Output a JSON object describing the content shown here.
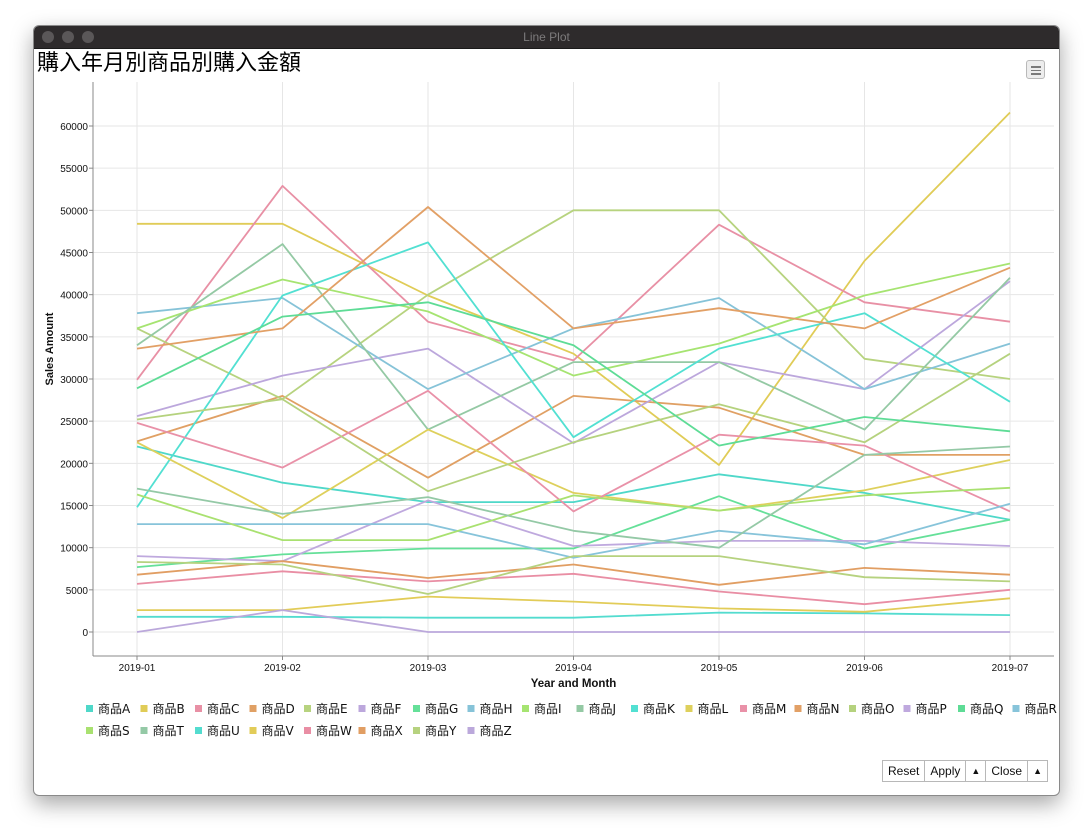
{
  "window": {
    "title": "Line Plot"
  },
  "toolbar": {
    "reset_label": "Reset",
    "apply_label": "Apply",
    "close_label": "Close",
    "arrow_glyph": "▲"
  },
  "menu_icon": "hamburger-menu-icon",
  "chart_data": {
    "type": "line",
    "title": "購入年月別商品別購入金額",
    "xlabel": "Year and Month",
    "ylabel": "Sales Amount",
    "categories": [
      "2019-01",
      "2019-02",
      "2019-03",
      "2019-04",
      "2019-05",
      "2019-06",
      "2019-07"
    ],
    "ylim": [
      -3000,
      64000
    ],
    "yticks": [
      0,
      5000,
      10000,
      15000,
      20000,
      25000,
      30000,
      35000,
      40000,
      45000,
      50000,
      55000,
      60000
    ],
    "grid": true,
    "legend_position": "bottom",
    "series": [
      {
        "name": "商品A",
        "color": "#4fd8c9",
        "values": [
          22000,
          17700,
          15400,
          15400,
          18700,
          16500,
          13300
        ]
      },
      {
        "name": "商品B",
        "color": "#e0cc57",
        "values": [
          48400,
          48400,
          39900,
          33000,
          19800,
          44000,
          61600
        ]
      },
      {
        "name": "商品C",
        "color": "#e890a5",
        "values": [
          29900,
          52900,
          36800,
          32200,
          48300,
          39100,
          36800
        ]
      },
      {
        "name": "商品D",
        "color": "#e0a064",
        "values": [
          22600,
          28000,
          18300,
          28000,
          26600,
          21000,
          21000
        ]
      },
      {
        "name": "商品E",
        "color": "#b7d37f",
        "values": [
          36000,
          27600,
          40000,
          50000,
          50000,
          32400,
          30000
        ]
      },
      {
        "name": "商品F",
        "color": "#bca7dc",
        "values": [
          25600,
          30400,
          33600,
          22400,
          32000,
          28800,
          41600
        ]
      },
      {
        "name": "商品G",
        "color": "#65e099",
        "values": [
          7700,
          9200,
          9900,
          9900,
          16100,
          9900,
          13300
        ]
      },
      {
        "name": "商品H",
        "color": "#86c3d8",
        "values": [
          37800,
          39600,
          28800,
          36000,
          39600,
          28800,
          34200
        ]
      },
      {
        "name": "商品I",
        "color": "#a6e471",
        "values": [
          36000,
          41800,
          38000,
          30400,
          34200,
          39900,
          43700
        ]
      },
      {
        "name": "商品J",
        "color": "#94c9a4",
        "values": [
          34000,
          46000,
          24000,
          32000,
          32000,
          24000,
          42000
        ]
      },
      {
        "name": "商品K",
        "color": "#52e0d2",
        "values": [
          14800,
          39900,
          46200,
          23100,
          33600,
          37800,
          27300
        ]
      },
      {
        "name": "商品L",
        "color": "#ded05c",
        "values": [
          22500,
          13500,
          24000,
          16500,
          14400,
          16800,
          20400
        ]
      },
      {
        "name": "商品M",
        "color": "#e991a8",
        "values": [
          24800,
          19500,
          28600,
          14300,
          23400,
          22100,
          14300
        ]
      },
      {
        "name": "商品N",
        "color": "#e2a066",
        "values": [
          33600,
          36000,
          50400,
          36000,
          38400,
          36000,
          43200
        ]
      },
      {
        "name": "商品O",
        "color": "#b5d27e",
        "values": [
          25200,
          27600,
          16700,
          22500,
          27000,
          22500,
          33000
        ]
      },
      {
        "name": "商品P",
        "color": "#bfa9de",
        "values": [
          9000,
          8400,
          15600,
          10200,
          10800,
          10800,
          10200
        ]
      },
      {
        "name": "商品Q",
        "color": "#5edc96",
        "values": [
          28900,
          37400,
          39100,
          34000,
          22100,
          25500,
          23800
        ]
      },
      {
        "name": "商品R",
        "color": "#87c4da",
        "values": [
          12800,
          12800,
          12800,
          8800,
          12000,
          10400,
          15200
        ]
      },
      {
        "name": "商品S",
        "color": "#a9e170",
        "values": [
          16300,
          10900,
          10900,
          16200,
          14400,
          16200,
          17100
        ]
      },
      {
        "name": "商品T",
        "color": "#94c9a6",
        "values": [
          17000,
          14000,
          16000,
          12000,
          10000,
          21000,
          22000
        ]
      },
      {
        "name": "商品U",
        "color": "#53dccf",
        "values": [
          1800,
          1800,
          1700,
          1700,
          2300,
          2200,
          2000
        ]
      },
      {
        "name": "商品V",
        "color": "#e2cc58",
        "values": [
          2600,
          2600,
          4200,
          3600,
          2800,
          2400,
          4000
        ]
      },
      {
        "name": "商品W",
        "color": "#e98ea4",
        "values": [
          5700,
          7200,
          6000,
          6900,
          4800,
          3300,
          5000
        ]
      },
      {
        "name": "商品X",
        "color": "#e19e63",
        "values": [
          6800,
          8400,
          6400,
          8000,
          5600,
          7600,
          6800
        ]
      },
      {
        "name": "商品Y",
        "color": "#b6d27f",
        "values": [
          8300,
          8000,
          4500,
          9000,
          9000,
          6500,
          6000
        ]
      },
      {
        "name": "商品Z",
        "color": "#bba8db",
        "values": [
          0,
          2600,
          0,
          0,
          0,
          0,
          0
        ]
      }
    ]
  }
}
